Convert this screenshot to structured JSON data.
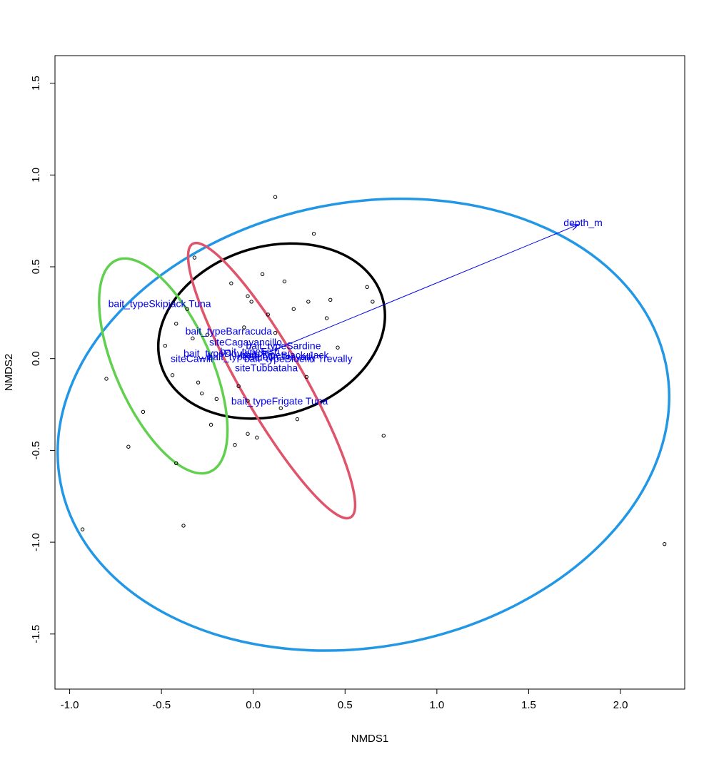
{
  "chart_data": {
    "type": "scatter",
    "title": "",
    "xlabel": "NMDS1",
    "ylabel": "NMDS2",
    "xlim": [
      -1.08,
      2.35
    ],
    "ylim": [
      -1.8,
      1.65
    ],
    "xticks": [
      -1.0,
      -0.5,
      0.0,
      0.5,
      1.0,
      1.5,
      2.0
    ],
    "xtick_labels": [
      "-1.0",
      "-0.5",
      "0.0",
      "0.5",
      "1.0",
      "1.5",
      "2.0"
    ],
    "yticks": [
      -1.5,
      -1.0,
      -0.5,
      0.0,
      0.5,
      1.0,
      1.5
    ],
    "ytick_labels": [
      "-1.5",
      "-1.0",
      "-0.5",
      "0.0",
      "0.5",
      "1.0",
      "1.5"
    ],
    "grid": false,
    "points": [
      {
        "x": 0.12,
        "y": 0.88
      },
      {
        "x": 0.33,
        "y": 0.68
      },
      {
        "x": -0.32,
        "y": 0.55
      },
      {
        "x": 0.05,
        "y": 0.46
      },
      {
        "x": 0.17,
        "y": 0.42
      },
      {
        "x": -0.12,
        "y": 0.41
      },
      {
        "x": 0.62,
        "y": 0.39
      },
      {
        "x": -0.03,
        "y": 0.34
      },
      {
        "x": 0.42,
        "y": 0.32
      },
      {
        "x": 0.65,
        "y": 0.31
      },
      {
        "x": 0.3,
        "y": 0.31
      },
      {
        "x": -0.01,
        "y": 0.31
      },
      {
        "x": -0.36,
        "y": 0.27
      },
      {
        "x": 0.22,
        "y": 0.27
      },
      {
        "x": -0.42,
        "y": 0.19
      },
      {
        "x": -0.05,
        "y": 0.17
      },
      {
        "x": -0.33,
        "y": 0.11
      },
      {
        "x": -0.48,
        "y": 0.07
      },
      {
        "x": 0.46,
        "y": 0.06
      },
      {
        "x": -0.44,
        "y": -0.09
      },
      {
        "x": 0.29,
        "y": -0.1
      },
      {
        "x": -0.3,
        "y": -0.13
      },
      {
        "x": -0.08,
        "y": -0.15
      },
      {
        "x": -0.28,
        "y": -0.19
      },
      {
        "x": -0.2,
        "y": -0.22
      },
      {
        "x": -0.03,
        "y": -0.23
      },
      {
        "x": -0.6,
        "y": -0.29
      },
      {
        "x": 0.15,
        "y": -0.27
      },
      {
        "x": 0.24,
        "y": -0.33
      },
      {
        "x": -0.23,
        "y": -0.36
      },
      {
        "x": -0.03,
        "y": -0.41
      },
      {
        "x": 0.02,
        "y": -0.43
      },
      {
        "x": 0.71,
        "y": -0.42
      },
      {
        "x": -0.1,
        "y": -0.47
      },
      {
        "x": -0.68,
        "y": -0.48
      },
      {
        "x": -0.42,
        "y": -0.57
      },
      {
        "x": -0.8,
        "y": -0.11
      },
      {
        "x": -0.38,
        "y": -0.91
      },
      {
        "x": -0.93,
        "y": -0.93
      },
      {
        "x": 2.24,
        "y": -1.01
      },
      {
        "x": 0.08,
        "y": 0.24
      },
      {
        "x": 0.4,
        "y": 0.22
      },
      {
        "x": -0.25,
        "y": 0.13
      },
      {
        "x": 0.12,
        "y": 0.14
      }
    ],
    "ellipses": [
      {
        "color": "#2297e6",
        "cx": 0.6,
        "cy": -0.36,
        "rx": 1.68,
        "ry": 1.21,
        "angle_deg": -11
      },
      {
        "color": "#000000",
        "cx": 0.1,
        "cy": 0.15,
        "rx": 0.63,
        "ry": 0.46,
        "angle_deg": -17
      },
      {
        "color": "#61d04f",
        "cx": -0.49,
        "cy": -0.04,
        "rx": 0.26,
        "ry": 0.63,
        "angle_deg": -24
      },
      {
        "color": "#df536b",
        "cx": 0.1,
        "cy": -0.12,
        "rx": 0.17,
        "ry": 0.86,
        "angle_deg": -30
      }
    ],
    "vectors": [
      {
        "name": "depth_m",
        "x0": 0.0,
        "y0": 0.0,
        "x1": 1.77,
        "y1": 0.73,
        "label_x": 1.69,
        "label_y": 0.74
      }
    ],
    "labels": [
      {
        "text": "bait_typeSkipjack Tuna",
        "x": -0.79,
        "y": 0.3
      },
      {
        "text": "bait_typeBarracuda",
        "x": -0.37,
        "y": 0.15
      },
      {
        "text": "siteCagayancillo",
        "x": -0.24,
        "y": 0.09
      },
      {
        "text": "bait_typeSardine",
        "x": -0.04,
        "y": 0.07
      },
      {
        "text": "bait_typeDoyleiack",
        "x": -0.38,
        "y": 0.03
      },
      {
        "text": "bait_typeBluefin Trevally",
        "x": -0.25,
        "y": 0.01
      },
      {
        "text": "bait_typeBlack Jack",
        "x": -0.07,
        "y": 0.02
      },
      {
        "text": "bait_typeFish",
        "x": -0.18,
        "y": 0.04
      },
      {
        "text": "siteCawili",
        "x": -0.45,
        "y": 0.0
      },
      {
        "text": "bait_typeBluefin Trevally",
        "x": -0.05,
        "y": 0.0
      },
      {
        "text": "siteTubbataha",
        "x": -0.1,
        "y": -0.05
      },
      {
        "text": "bait_typeFrigate Tuna",
        "x": -0.12,
        "y": -0.23
      }
    ]
  }
}
